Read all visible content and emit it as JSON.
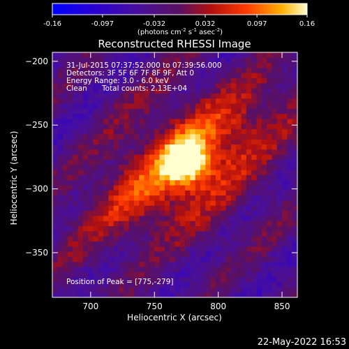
{
  "chart_data": {
    "type": "heatmap",
    "title": "Reconstructed RHESSI Image",
    "xlabel": "Heliocentric X (arcsec)",
    "ylabel": "Heliocentric Y (arcsec)",
    "xlim": [
      670,
      862
    ],
    "ylim": [
      -385,
      -193
    ],
    "xticks": [
      700,
      750,
      800,
      850
    ],
    "yticks": [
      -200,
      -250,
      -300,
      -350
    ],
    "colorbar": {
      "ticks": [
        "-0.16",
        "-0.097",
        "-0.032",
        "0.032",
        "0.097",
        "0.16"
      ],
      "range": [
        -0.16,
        0.16
      ],
      "unit_main": "(photons cm",
      "unit_sup1": "-2",
      "unit_mid1": " s",
      "unit_sup2": "-1",
      "unit_mid2": " asec",
      "unit_sup3": "-2",
      "unit_end": ")"
    },
    "annotations": {
      "time_range": "31-Jul-2015 07:37:52.000 to 07:39:56.000",
      "detectors": "Detectors: 3F 5F 6F 7F 8F 9F, Att 0",
      "energy": "Energy Range: 3.0 - 6.0 keV",
      "clean": "Clean",
      "counts": "Total counts: 2.13E+04",
      "peak": "Position of Peak = [775,-279]"
    },
    "peak": {
      "x": 775,
      "y": -279,
      "value": 0.16
    },
    "colors": {
      "background": "#000000",
      "axis": "#ffffff"
    }
  },
  "footer": {
    "timestamp": "22-May-2022 16:53"
  }
}
